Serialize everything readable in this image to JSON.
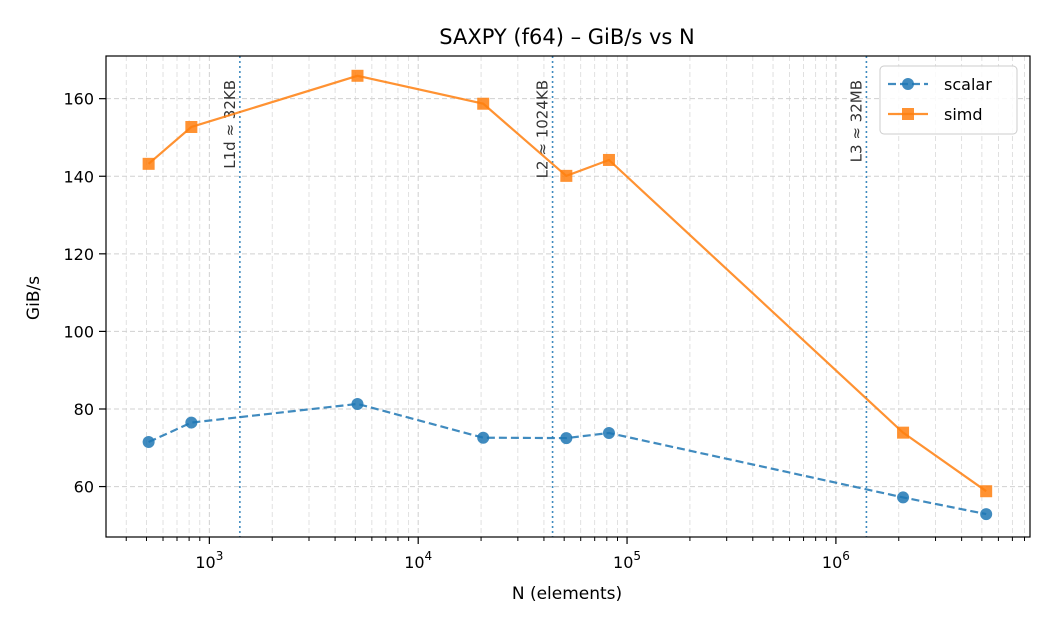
{
  "chart_data": {
    "type": "line",
    "title": "SAXPY (f64) – GiB/s vs N",
    "xlabel": "N (elements)",
    "ylabel": "GiB/s",
    "x_scale": "log",
    "xlim": [
      320,
      8500000
    ],
    "ylim": [
      47,
      171
    ],
    "x_ticks": [
      {
        "value": 1000,
        "base": "10",
        "exp": "3"
      },
      {
        "value": 10000,
        "base": "10",
        "exp": "4"
      },
      {
        "value": 100000,
        "base": "10",
        "exp": "5"
      },
      {
        "value": 1000000,
        "base": "10",
        "exp": "6"
      }
    ],
    "y_ticks": [
      60,
      80,
      100,
      120,
      140,
      160
    ],
    "grid": true,
    "legend_position": "top-right",
    "series": [
      {
        "name": "scalar",
        "color": "#1f77b4",
        "marker": "circle",
        "line_style": "dashed",
        "x": [
          512,
          820,
          5120,
          20480,
          51200,
          81920,
          2097152,
          5242880
        ],
        "y": [
          71.5,
          76.5,
          81.3,
          72.6,
          72.5,
          73.8,
          57.2,
          52.9
        ]
      },
      {
        "name": "simd",
        "color": "#ff7f0e",
        "marker": "square",
        "line_style": "solid",
        "x": [
          512,
          820,
          5120,
          20480,
          51200,
          81920,
          2097152,
          5242880
        ],
        "y": [
          143.2,
          152.7,
          165.9,
          158.7,
          140.1,
          144.2,
          73.9,
          58.8
        ]
      }
    ],
    "cache_lines": [
      {
        "x": 1400,
        "label": "L1d ≈ 32KB"
      },
      {
        "x": 44000,
        "label": "L2 ≈ 1024KB"
      },
      {
        "x": 1400000,
        "label": "L3 ≈ 32MB"
      }
    ],
    "cache_line_color": "#1f77b4"
  }
}
